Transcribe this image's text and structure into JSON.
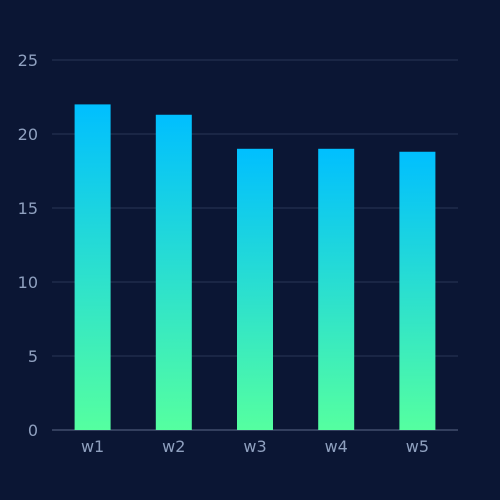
{
  "chart_data": {
    "type": "bar",
    "categories": [
      "w1",
      "w2",
      "w3",
      "w4",
      "w5"
    ],
    "values": [
      22,
      21.3,
      19,
      19,
      18.8
    ],
    "title": "",
    "xlabel": "",
    "ylabel": "",
    "ylim": [
      0,
      25
    ],
    "yticks": [
      0,
      5,
      10,
      15,
      20,
      25
    ],
    "grid": true,
    "legend": "none",
    "colors": {
      "background": "#0b1634",
      "bar_gradient_top": "#00bfff",
      "bar_gradient_bottom": "#55ffa0",
      "grid": "#2a3756",
      "tick_label": "#8fa0bf"
    }
  }
}
